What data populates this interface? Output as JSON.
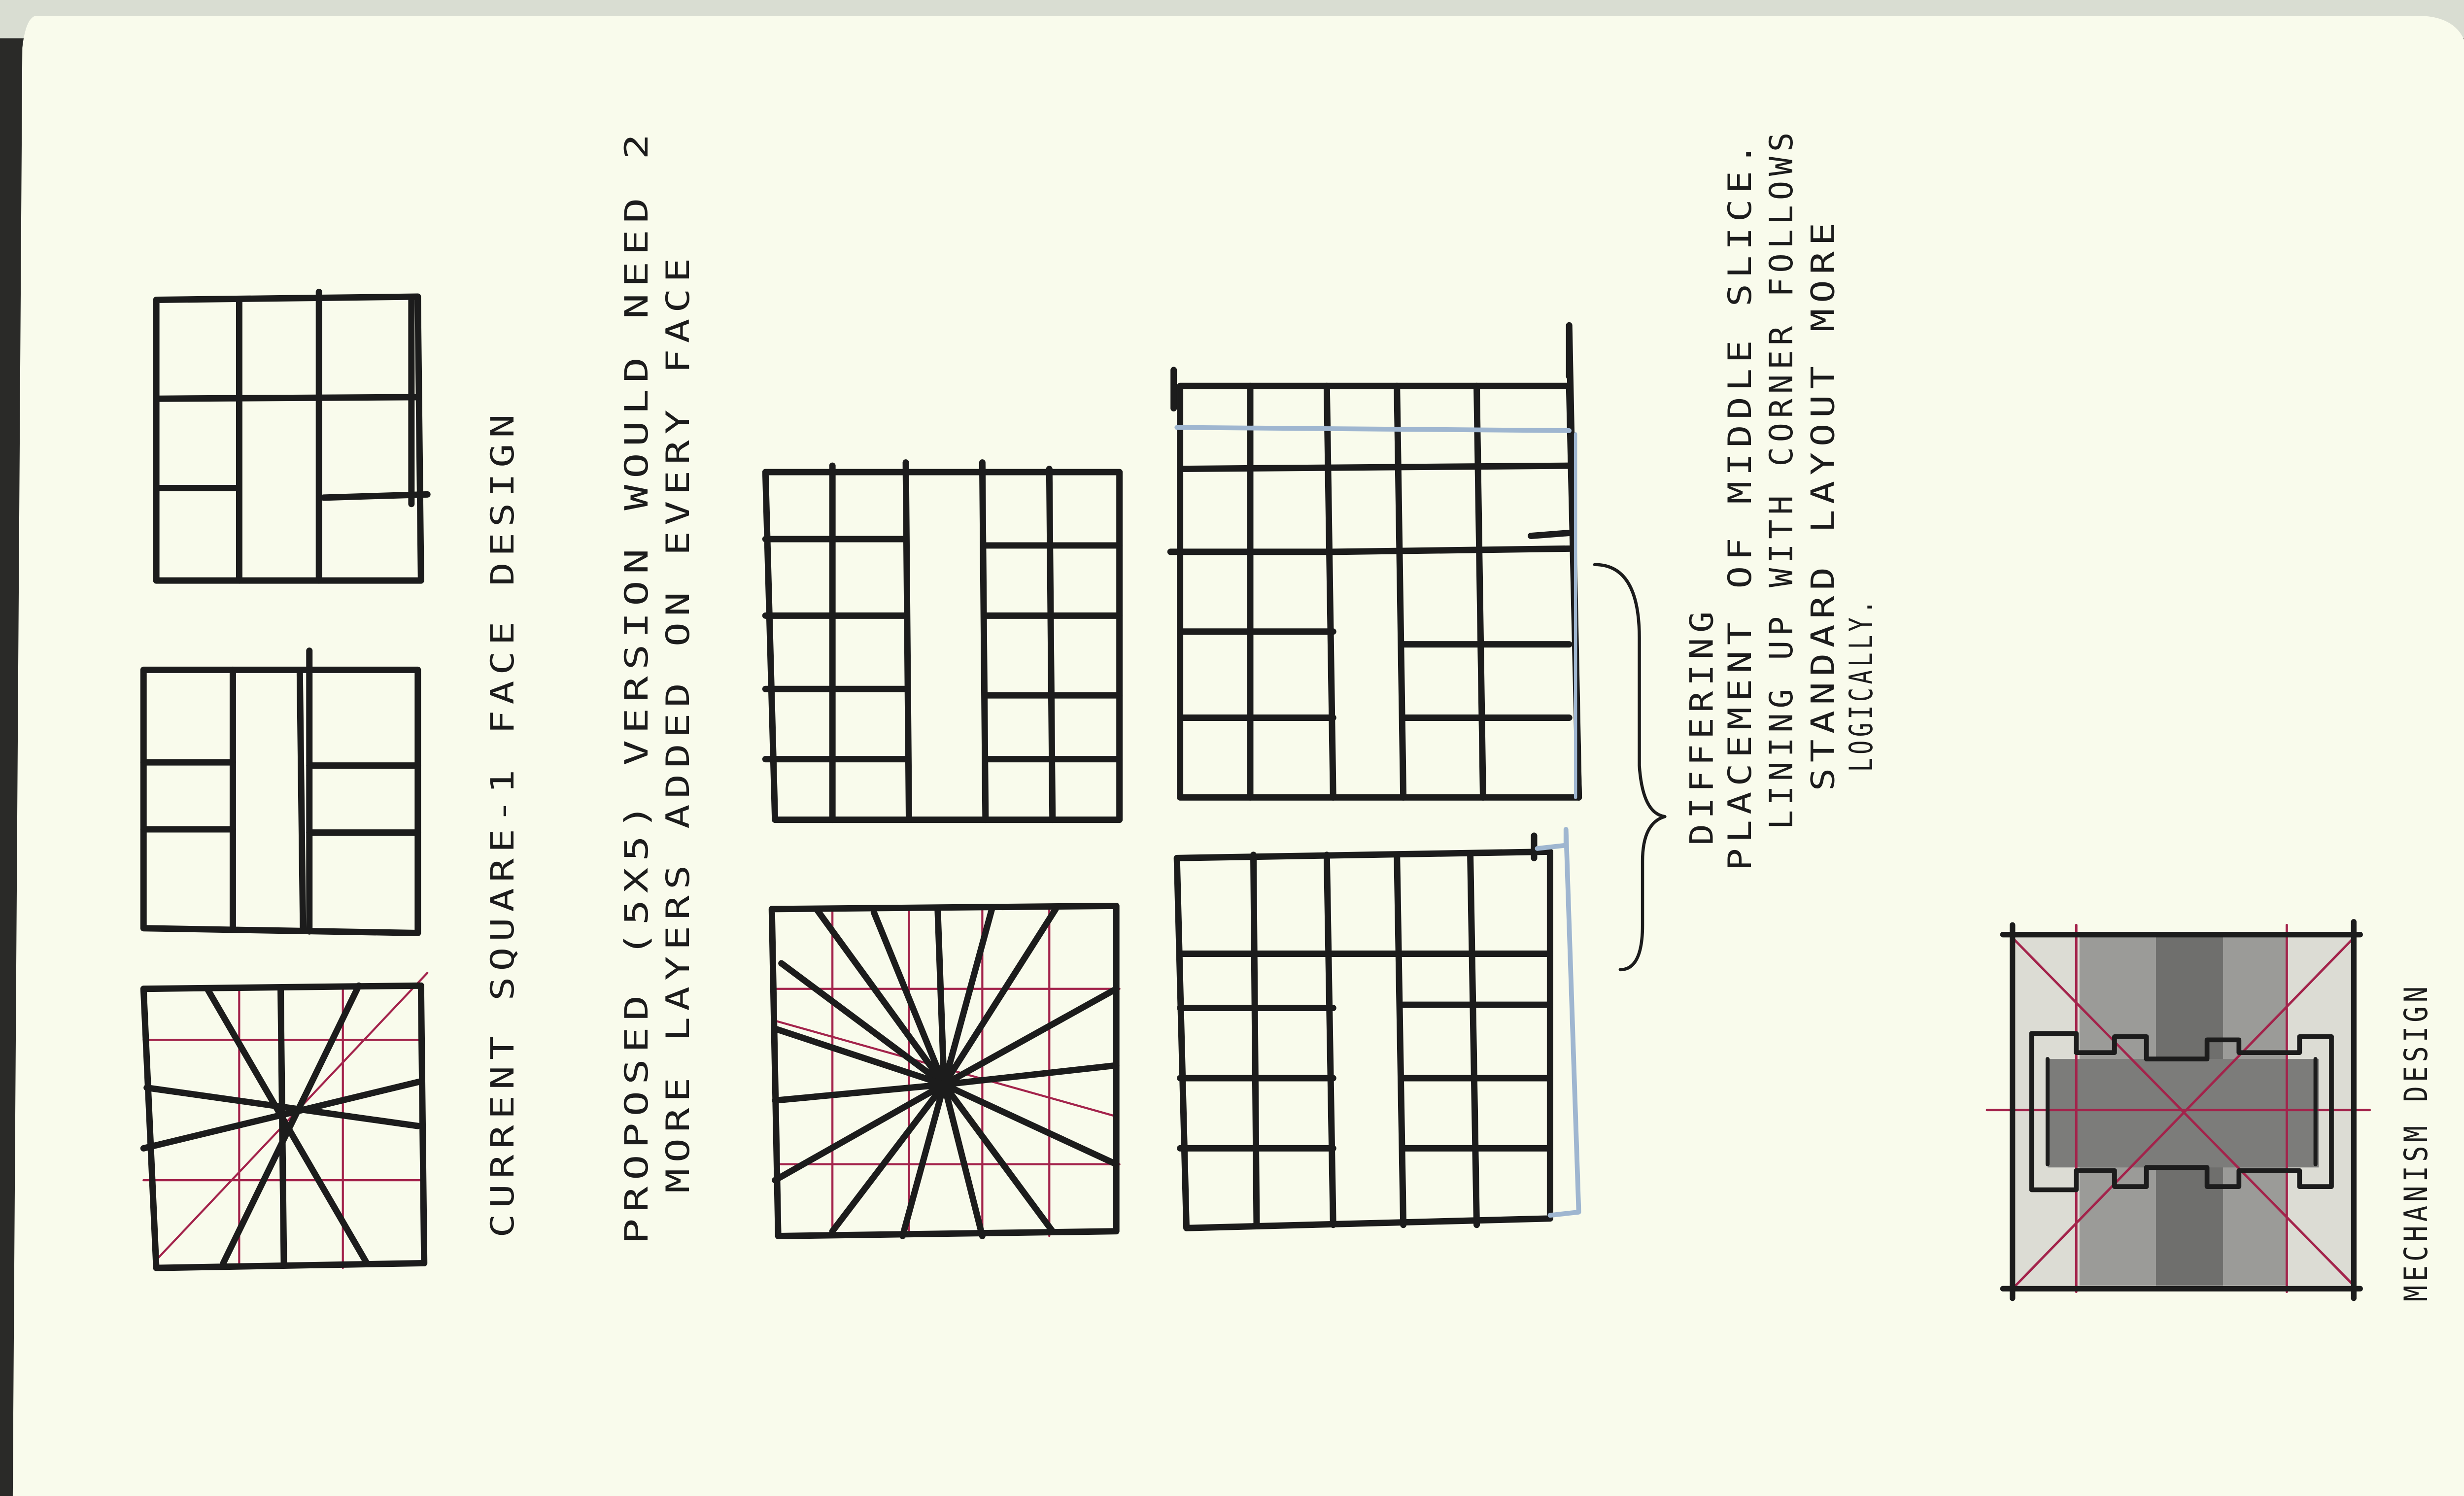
{
  "sketchbook": {
    "page_color": "#f9fbec",
    "ink_color": "#1c1c1c",
    "accent_colors": {
      "red_pencil": "#a3234b",
      "blue_pencil": "#9fb6d0",
      "grey_marker": "#6e6e6e"
    }
  },
  "annotations": {
    "current_design": "CURRENT SQUARE-1 FACE DESIGN",
    "proposal_line1": "PROPOSED (5X5) VERSION WOULD NEED 2",
    "proposal_line2": "MORE LAYERS ADDED ON EVERY FACE",
    "differing_line1": "DIFFERING",
    "differing_line2": "PLACEMENT OF MIDDLE SLICE.",
    "lineup_line1": "LINING UP WITH CORNER FOLLOWS",
    "lineup_line2": "STANDARD LAYOUT MORE",
    "lineup_line3": "LOGICALLY.",
    "mechanism": "MECHANISM DESIGN"
  },
  "sketches": [
    {
      "name": "current-grid-3x3",
      "icon": "grid-sketch-icon"
    },
    {
      "name": "current-middle-slice",
      "icon": "grid-sketch-icon"
    },
    {
      "name": "current-radial-cuts",
      "icon": "radial-sketch-icon"
    },
    {
      "name": "proposed-grid-5x5",
      "icon": "grid-sketch-icon"
    },
    {
      "name": "proposed-radial-cuts",
      "icon": "radial-sketch-icon"
    },
    {
      "name": "large-grid-top",
      "icon": "grid-sketch-icon"
    },
    {
      "name": "large-grid-bottom",
      "icon": "grid-sketch-icon"
    },
    {
      "name": "curly-brace",
      "icon": "brace-icon"
    },
    {
      "name": "mechanism-drawing",
      "icon": "mechanism-icon"
    }
  ]
}
